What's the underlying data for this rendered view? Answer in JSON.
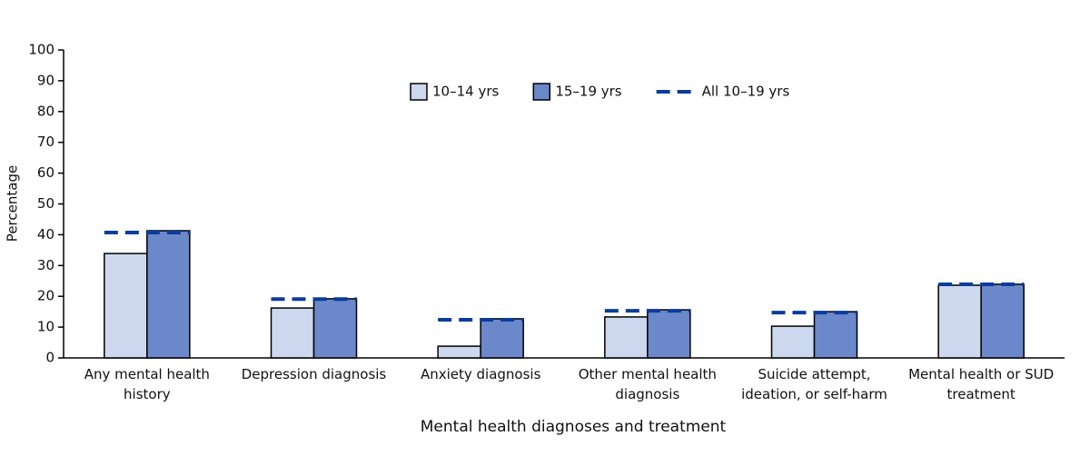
{
  "chart_data": {
    "type": "bar",
    "x_label": "Mental health diagnoses and treatment",
    "y_label": "Percentage",
    "categories": [
      "Any mental health history",
      "Depression diagnosis",
      "Anxiety diagnosis",
      "Other mental health diagnosis",
      "Suicide attempt, ideation, or self-harm",
      "Mental health or SUD treatment"
    ],
    "series": [
      {
        "name": "10–14 yrs",
        "type": "bar",
        "color": "#cdd8ef",
        "values": [
          33.9,
          16.2,
          3.8,
          13.3,
          10.3,
          23.6
        ]
      },
      {
        "name": "15–19 yrs",
        "type": "bar",
        "color": "#6b88cb",
        "values": [
          41.3,
          19.2,
          12.7,
          15.6,
          15.0,
          23.9
        ]
      },
      {
        "name": "All 10–19 yrs",
        "type": "line",
        "color": "#0b3c9c",
        "values": [
          40.7,
          19.1,
          12.4,
          15.3,
          14.7,
          23.9
        ]
      }
    ],
    "ylim": [
      0,
      100
    ],
    "yticks": [
      0,
      10,
      20,
      30,
      40,
      50,
      60,
      70,
      80,
      90,
      100
    ],
    "legend": "top"
  }
}
